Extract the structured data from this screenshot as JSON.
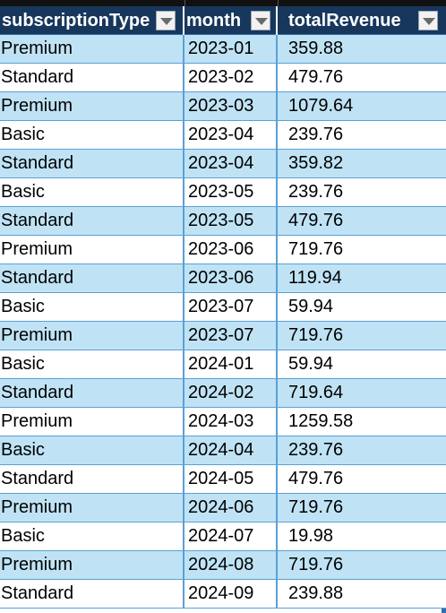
{
  "table": {
    "columns": [
      {
        "label": "subscriptionType",
        "filter_icon": "dropdown-arrow"
      },
      {
        "label": "month",
        "filter_icon": "dropdown-arrow"
      },
      {
        "label": "totalRevenue",
        "filter_icon": "dropdown-arrow"
      }
    ],
    "rows": [
      [
        "Premium",
        "2023-01",
        "359.88"
      ],
      [
        "Standard",
        "2023-02",
        "479.76"
      ],
      [
        "Premium",
        "2023-03",
        "1079.64"
      ],
      [
        "Basic",
        "2023-04",
        "239.76"
      ],
      [
        "Standard",
        "2023-04",
        "359.82"
      ],
      [
        "Basic",
        "2023-05",
        "239.76"
      ],
      [
        "Standard",
        "2023-05",
        "479.76"
      ],
      [
        "Premium",
        "2023-06",
        "719.76"
      ],
      [
        "Standard",
        "2023-06",
        "119.94"
      ],
      [
        "Basic",
        "2023-07",
        "59.94"
      ],
      [
        "Premium",
        "2023-07",
        "719.76"
      ],
      [
        "Basic",
        "2024-01",
        "59.94"
      ],
      [
        "Standard",
        "2024-02",
        "719.64"
      ],
      [
        "Premium",
        "2024-03",
        "1259.58"
      ],
      [
        "Basic",
        "2024-04",
        "239.76"
      ],
      [
        "Standard",
        "2024-05",
        "479.76"
      ],
      [
        "Premium",
        "2024-06",
        "719.76"
      ],
      [
        "Basic",
        "2024-07",
        "19.98"
      ],
      [
        "Premium",
        "2024-08",
        "719.76"
      ],
      [
        "Standard",
        "2024-09",
        "239.88"
      ]
    ]
  },
  "colors": {
    "header_bg": "#17375d",
    "band_odd": "#bfe3f5",
    "band_even": "#ffffff",
    "grid_line": "#5aa0d6"
  }
}
